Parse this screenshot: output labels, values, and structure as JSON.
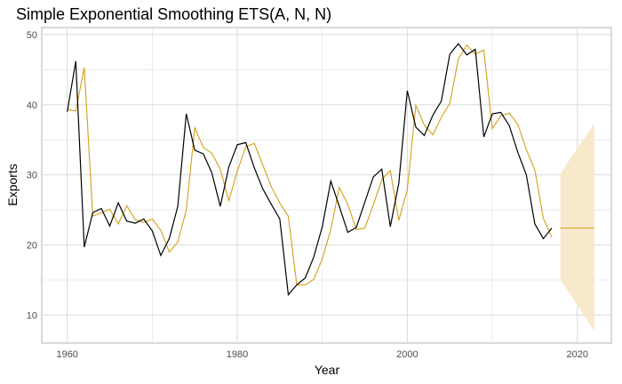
{
  "chart_data": {
    "type": "line",
    "title": "Simple Exponential Smoothing ETS(A, N, N)",
    "xlabel": "Year",
    "ylabel": "Exports",
    "xlim": [
      1957,
      2024
    ],
    "ylim": [
      6,
      51
    ],
    "x_ticks": [
      1960,
      1980,
      2000,
      2020
    ],
    "y_ticks": [
      10,
      20,
      30,
      40,
      50
    ],
    "grid": true,
    "legend": "none",
    "colors": {
      "observed": "#000000",
      "fitted": "#d4a017",
      "forecast": "#d4a017",
      "interval": "#f7e7c8",
      "grid": "#dedede",
      "panel_border": "#b3b3b3"
    },
    "series": [
      {
        "x": [
          1960,
          1961,
          1962,
          1963,
          1964,
          1965,
          1966,
          1967,
          1968,
          1969,
          1970,
          1971,
          1972,
          1973,
          1974,
          1975,
          1976,
          1977,
          1978,
          1979,
          1980,
          1981,
          1982,
          1983,
          1984,
          1985,
          1986,
          1987,
          1988,
          1989,
          1990,
          1991,
          1992,
          1993,
          1994,
          1995,
          1996,
          1997,
          1998,
          1999,
          2000,
          2001,
          2002,
          2003,
          2004,
          2005,
          2006,
          2007,
          2008,
          2009,
          2010,
          2011,
          2012,
          2013,
          2014,
          2015,
          2016,
          2017
        ],
        "values": [
          39.0,
          46.2,
          19.7,
          24.6,
          25.2,
          22.7,
          26.0,
          23.4,
          23.1,
          23.7,
          22.0,
          18.5,
          20.9,
          25.5,
          38.7,
          33.5,
          33.0,
          30.3,
          25.5,
          31.1,
          34.3,
          34.6,
          31.0,
          28.0,
          25.8,
          23.7,
          12.9,
          14.3,
          15.3,
          18.3,
          22.6,
          29.1,
          25.5,
          21.8,
          22.5,
          26.1,
          29.7,
          30.8,
          22.6,
          28.8,
          42.0,
          36.8,
          35.6,
          38.5,
          40.5,
          47.2,
          48.7,
          47.1,
          47.9,
          35.4,
          38.7,
          38.9,
          37.0,
          33.2,
          30.0,
          23.0,
          20.9,
          22.4
        ]
      },
      {
        "x": [
          1960,
          1961,
          1962,
          1963,
          1964,
          1965,
          1966,
          1967,
          1968,
          1969,
          1970,
          1971,
          1972,
          1973,
          1974,
          1975,
          1976,
          1977,
          1978,
          1979,
          1980,
          1981,
          1982,
          1983,
          1984,
          1985,
          1986,
          1987,
          1988,
          1989,
          1990,
          1991,
          1992,
          1993,
          1994,
          1995,
          1996,
          1997,
          1998,
          1999,
          2000,
          2001,
          2002,
          2003,
          2004,
          2005,
          2006,
          2007,
          2008,
          2009,
          2010,
          2011,
          2012,
          2013,
          2014,
          2015,
          2016,
          2017
        ],
        "values": [
          39.3,
          39.1,
          45.3,
          24.1,
          24.6,
          25.1,
          23.0,
          25.6,
          23.6,
          23.2,
          23.7,
          22.1,
          19.0,
          20.4,
          25.0,
          36.7,
          33.9,
          33.1,
          30.8,
          26.3,
          30.5,
          34.0,
          34.5,
          31.4,
          28.3,
          26.0,
          24.1,
          14.3,
          14.3,
          15.1,
          18.0,
          22.2,
          28.2,
          25.8,
          22.2,
          22.4,
          25.7,
          29.3,
          30.6,
          23.5,
          27.9,
          39.9,
          37.1,
          35.7,
          38.2,
          40.2,
          46.5,
          48.5,
          47.2,
          47.8,
          36.6,
          38.4,
          38.8,
          37.2,
          33.6,
          30.7,
          23.8,
          21.1
        ]
      }
    ],
    "forecast": {
      "x": [
        2018,
        2022
      ],
      "point": 22.4,
      "lower": [
        15.1,
        7.7
      ],
      "upper": [
        30.2,
        37.3
      ]
    }
  }
}
